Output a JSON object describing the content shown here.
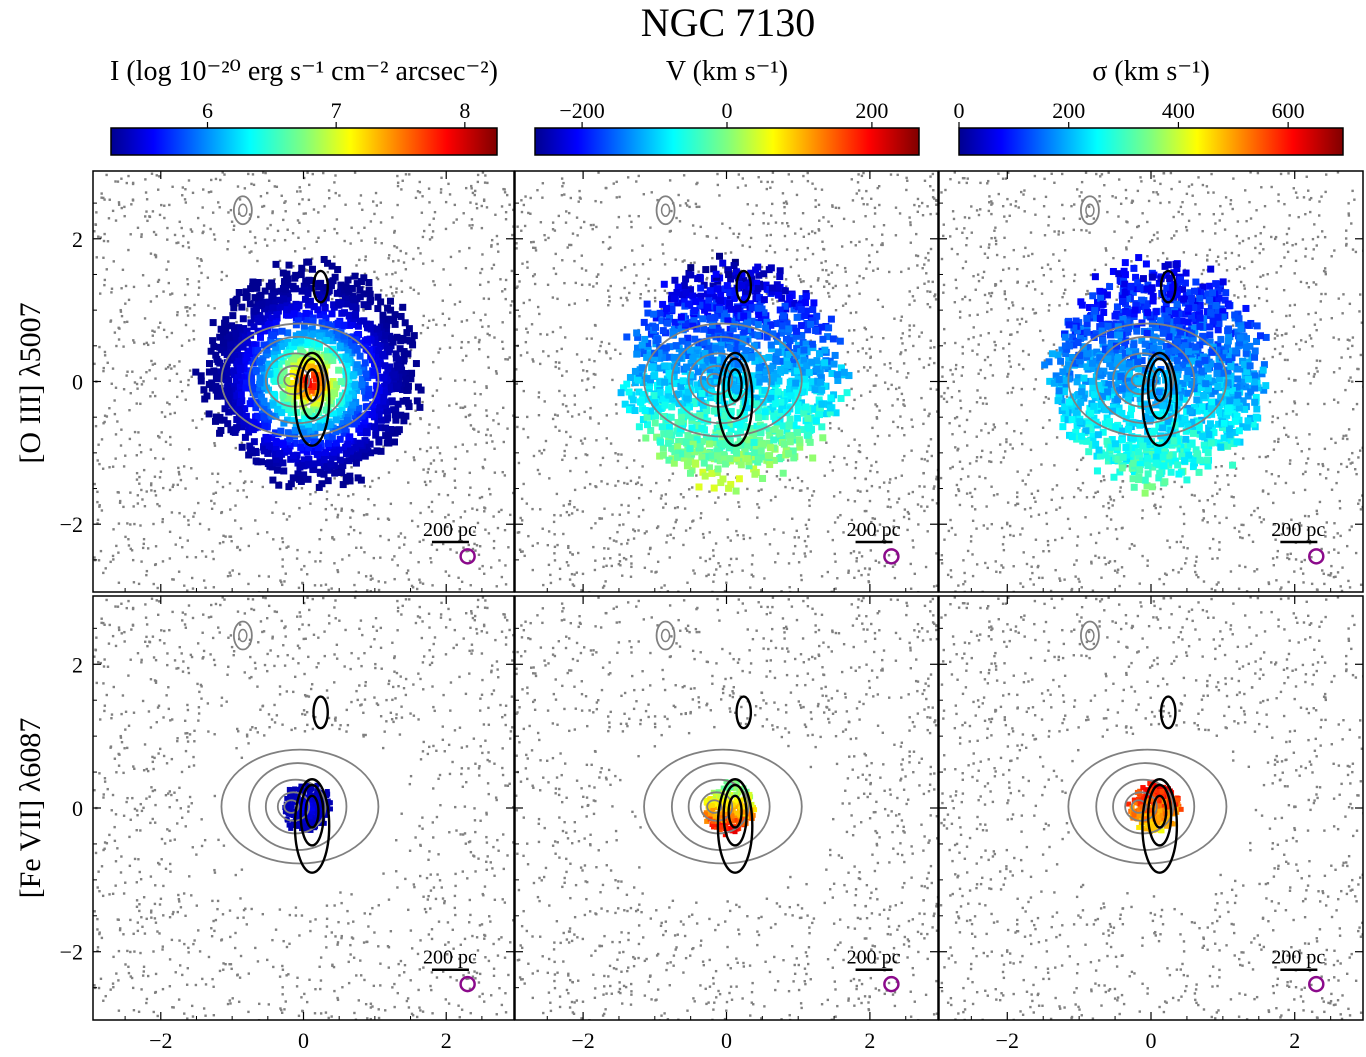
{
  "title": "NGC 7130",
  "colorbars": [
    {
      "label": "I (log 10⁻²⁰ erg s⁻¹ cm⁻² arcsec⁻²)",
      "ticks": [
        "6",
        "7",
        "8"
      ],
      "tick_values": [
        6,
        7,
        8
      ],
      "range": [
        5.25,
        8.25
      ],
      "colormap": "jet"
    },
    {
      "label": "V (km s⁻¹)",
      "ticks": [
        "−200",
        "0",
        "200"
      ],
      "tick_values": [
        -200,
        0,
        200
      ],
      "range": [
        -265,
        265
      ],
      "colormap": "jet"
    },
    {
      "label": "σ (km s⁻¹)",
      "ticks": [
        "0",
        "200",
        "400",
        "600"
      ],
      "tick_values": [
        0,
        200,
        400,
        600
      ],
      "range": [
        0,
        700
      ],
      "colormap": "jet"
    }
  ],
  "rows": [
    {
      "label": "[O III] λ5007"
    },
    {
      "label": "[Fe VII] λ6087"
    }
  ],
  "axes": {
    "x_ticks": [
      "−2",
      "0",
      "2"
    ],
    "y_ticks": [
      "2",
      "0",
      "−2"
    ],
    "xlim": [
      -2.95,
      2.95
    ],
    "ylim": [
      -2.95,
      2.95
    ]
  },
  "scale_bar_label": "200 pc",
  "chart_data": {
    "type": "heatmap",
    "title": "NGC 7130",
    "panels": [
      {
        "row": "[O III] λ5007",
        "quantity": "I",
        "center": [
          0.1,
          0.0
        ],
        "extent": [
          1.5,
          1.55
        ],
        "peak": 8.1,
        "edge": 5.3
      },
      {
        "row": "[O III] λ5007",
        "quantity": "V",
        "center": [
          0.1,
          0.0
        ],
        "extent": [
          1.5,
          1.55
        ],
        "north_value": -230,
        "south_value": 40
      },
      {
        "row": "[O III] λ5007",
        "quantity": "σ",
        "center": [
          0.1,
          0.0
        ],
        "extent": [
          1.5,
          1.55
        ],
        "north_value": 80,
        "south_value": 320
      },
      {
        "row": "[Fe VII] λ6087",
        "quantity": "I",
        "center": [
          0.05,
          0.0
        ],
        "extent": [
          0.35,
          0.35
        ],
        "peak": 5.7,
        "edge": 5.4
      },
      {
        "row": "[Fe VII] λ6087",
        "quantity": "V",
        "center": [
          0.05,
          0.0
        ],
        "extent": [
          0.35,
          0.35
        ],
        "north_value": -20,
        "south_value": 200
      },
      {
        "row": "[Fe VII] λ6087",
        "quantity": "σ",
        "center": [
          0.05,
          0.0
        ],
        "extent": [
          0.35,
          0.35
        ],
        "north_value": 620,
        "south_value": 450
      }
    ],
    "contours": {
      "continuum_color": "#808080",
      "radio_color": "#000000"
    },
    "beam_marker_color": "#8b0a8b",
    "xlim": [
      -2.95,
      2.95
    ],
    "ylim": [
      -2.95,
      2.95
    ]
  }
}
